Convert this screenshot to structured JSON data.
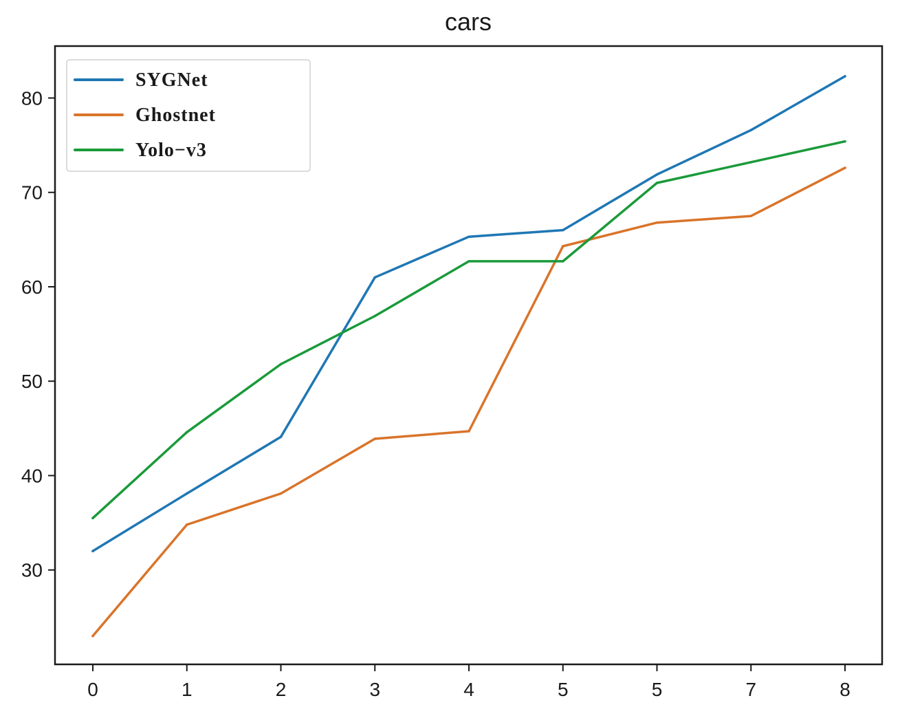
{
  "chart_data": {
    "type": "line",
    "title": "cars",
    "xlabel": "",
    "ylabel": "",
    "categories": [
      "0",
      "1",
      "2",
      "3",
      "4",
      "5",
      "5",
      "7",
      "8"
    ],
    "ylim": [
      20,
      85.5
    ],
    "yticks": [
      30,
      40,
      50,
      60,
      70,
      80
    ],
    "grid": false,
    "legend_position": "top-left",
    "series": [
      {
        "name": "SYGNet",
        "color": "#1f77b4",
        "values": [
          32.0,
          38.1,
          44.1,
          61.0,
          65.3,
          66.0,
          71.9,
          76.6,
          82.3
        ]
      },
      {
        "name": "Ghostnet",
        "color": "#d9742a",
        "values": [
          23.0,
          34.8,
          38.1,
          43.9,
          44.7,
          64.3,
          66.8,
          67.5,
          72.6
        ]
      },
      {
        "name": "Yolo−v3",
        "color": "#1a9a3a",
        "values": [
          35.5,
          44.6,
          51.8,
          56.9,
          62.7,
          62.7,
          71.0,
          73.2,
          75.4
        ]
      }
    ]
  }
}
